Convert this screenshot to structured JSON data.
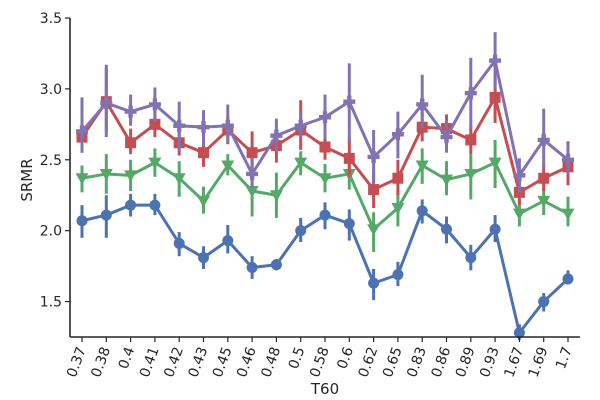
{
  "chart_data": {
    "type": "line",
    "xlabel": "T60",
    "ylabel": "SRMR",
    "categories": [
      "0.37",
      "0.38",
      "0.4",
      "0.41",
      "0.42",
      "0.43",
      "0.45",
      "0.46",
      "0.48",
      "0.5",
      "0.58",
      "0.6",
      "0.62",
      "0.65",
      "0.83",
      "0.86",
      "0.89",
      "0.93",
      "1.67",
      "1.69",
      "1.7"
    ],
    "ylim": [
      1.25,
      3.5
    ],
    "yticks": [
      "1.5",
      "2.0",
      "2.5",
      "3.0",
      "3.5"
    ],
    "grid": false,
    "series": [
      {
        "color": "#4c72b0",
        "marker": "circle",
        "values": [
          2.07,
          2.11,
          2.18,
          2.18,
          1.91,
          1.81,
          1.93,
          1.74,
          1.76,
          2.0,
          2.11,
          2.05,
          1.63,
          1.69,
          2.14,
          2.01,
          1.81,
          2.01,
          1.28,
          1.5,
          1.66
        ],
        "err_low": [
          1.95,
          1.95,
          2.1,
          2.11,
          1.82,
          1.73,
          1.84,
          1.66,
          1.72,
          1.92,
          2.01,
          1.93,
          1.51,
          1.61,
          2.05,
          1.91,
          1.72,
          1.92,
          1.23,
          1.43,
          1.62
        ],
        "err_high": [
          2.18,
          2.25,
          2.26,
          2.26,
          1.99,
          1.89,
          2.04,
          1.82,
          1.8,
          2.09,
          2.2,
          2.15,
          1.73,
          1.78,
          2.22,
          2.1,
          1.9,
          2.11,
          1.34,
          1.56,
          1.72
        ]
      },
      {
        "color": "#55a868",
        "marker": "triangle-down",
        "values": [
          2.37,
          2.4,
          2.39,
          2.48,
          2.37,
          2.21,
          2.46,
          2.28,
          2.25,
          2.48,
          2.37,
          2.4,
          2.01,
          2.16,
          2.46,
          2.36,
          2.4,
          2.48,
          2.12,
          2.21,
          2.12
        ],
        "err_low": [
          2.27,
          2.26,
          2.28,
          2.38,
          2.24,
          2.12,
          2.39,
          2.1,
          2.09,
          2.39,
          2.27,
          2.29,
          1.85,
          2.03,
          2.33,
          2.25,
          2.22,
          2.3,
          2.03,
          2.11,
          2.03
        ],
        "err_high": [
          2.46,
          2.54,
          2.5,
          2.58,
          2.49,
          2.31,
          2.54,
          2.42,
          2.41,
          2.56,
          2.47,
          2.52,
          2.13,
          2.28,
          2.58,
          2.49,
          2.54,
          2.64,
          2.22,
          2.3,
          2.24
        ]
      },
      {
        "color": "#c44e52",
        "marker": "square",
        "values": [
          2.66,
          2.91,
          2.62,
          2.75,
          2.62,
          2.55,
          2.71,
          2.55,
          2.6,
          2.71,
          2.59,
          2.51,
          2.29,
          2.37,
          2.73,
          2.72,
          2.64,
          2.94,
          2.27,
          2.37,
          2.45
        ],
        "err_low": [
          2.55,
          2.7,
          2.54,
          2.66,
          2.53,
          2.45,
          2.61,
          2.41,
          2.48,
          2.57,
          2.5,
          2.38,
          2.16,
          2.25,
          2.63,
          2.62,
          2.54,
          2.76,
          2.18,
          2.28,
          2.32
        ],
        "err_high": [
          2.78,
          3.15,
          2.72,
          2.85,
          2.7,
          2.66,
          2.8,
          2.7,
          2.69,
          2.92,
          2.68,
          2.64,
          2.41,
          2.5,
          2.84,
          2.82,
          2.74,
          3.1,
          2.36,
          2.47,
          2.63
        ]
      },
      {
        "color": "#8172b2",
        "marker": "plus",
        "values": [
          2.7,
          2.9,
          2.84,
          2.89,
          2.74,
          2.73,
          2.74,
          2.4,
          2.67,
          2.74,
          2.8,
          2.91,
          2.52,
          2.68,
          2.89,
          2.66,
          2.97,
          3.2,
          2.39,
          2.64,
          2.5
        ],
        "err_low": [
          2.55,
          2.66,
          2.74,
          2.77,
          2.56,
          2.6,
          2.62,
          2.3,
          2.56,
          2.66,
          2.65,
          2.63,
          2.33,
          2.51,
          2.72,
          2.55,
          2.72,
          3.0,
          2.27,
          2.44,
          2.4
        ],
        "err_high": [
          2.94,
          3.17,
          2.96,
          3.01,
          2.91,
          2.85,
          2.89,
          2.51,
          2.79,
          2.84,
          2.96,
          3.18,
          2.71,
          2.84,
          3.1,
          2.78,
          3.22,
          3.4,
          2.51,
          2.86,
          2.62
        ]
      }
    ]
  }
}
